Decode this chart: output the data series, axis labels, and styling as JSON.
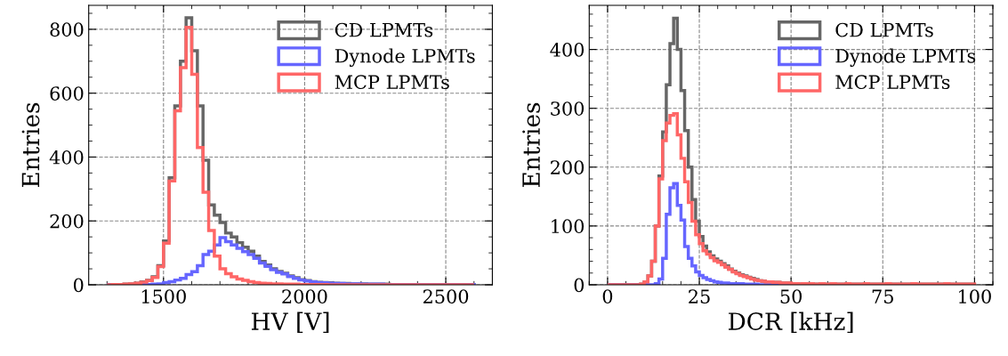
{
  "chart_data": [
    {
      "type": "histogram",
      "xlabel": "HV [V]",
      "ylabel": "Entries",
      "xlim": [
        1235,
        2665
      ],
      "xticks": [
        1500,
        2000,
        2500
      ],
      "ylim": [
        0,
        875
      ],
      "yticks": [
        0,
        200,
        400,
        600,
        800
      ],
      "grid": true,
      "legend": "top right",
      "bins": [
        1300,
        1320,
        1340,
        1360,
        1380,
        1400,
        1420,
        1440,
        1460,
        1480,
        1500,
        1520,
        1540,
        1560,
        1580,
        1600,
        1620,
        1640,
        1660,
        1680,
        1700,
        1720,
        1740,
        1760,
        1780,
        1800,
        1820,
        1840,
        1860,
        1880,
        1900,
        1920,
        1940,
        1960,
        1980,
        2000,
        2020,
        2040,
        2060,
        2080,
        2100,
        2120,
        2140,
        2160,
        2180,
        2200,
        2220,
        2240,
        2260,
        2280,
        2300,
        2320,
        2340,
        2360,
        2380,
        2400,
        2420,
        2440,
        2460,
        2480,
        2500,
        2520,
        2540,
        2560,
        2580,
        2600
      ],
      "series": [
        {
          "name": "CD LPMTs",
          "color": "#666666",
          "values": [
            0,
            1,
            1,
            2,
            3,
            5,
            9,
            14,
            25,
            60,
            137,
            335,
            560,
            700,
            836,
            733,
            560,
            390,
            250,
            218,
            195,
            162,
            150,
            132,
            118,
            105,
            90,
            73,
            62,
            50,
            42,
            36,
            28,
            22,
            16,
            13,
            10,
            8,
            7,
            6,
            5,
            4,
            4,
            3,
            3,
            3,
            2,
            2,
            2,
            2,
            1,
            1,
            1,
            1,
            1,
            1,
            1,
            1,
            1,
            1,
            0,
            1,
            0,
            0,
            1
          ]
        },
        {
          "name": "Dynode LPMTs",
          "color": "#6666ff",
          "values": [
            0,
            0,
            0,
            0,
            0,
            0,
            1,
            1,
            2,
            3,
            7,
            10,
            15,
            20,
            32,
            41,
            60,
            95,
            105,
            125,
            148,
            135,
            125,
            114,
            104,
            95,
            83,
            68,
            58,
            47,
            39,
            34,
            26,
            20,
            15,
            12,
            9,
            7,
            6,
            5,
            4,
            4,
            3,
            3,
            3,
            2,
            2,
            2,
            2,
            1,
            1,
            1,
            1,
            1,
            1,
            1,
            1,
            1,
            1,
            1,
            0,
            1,
            0,
            0,
            1
          ]
        },
        {
          "name": "MCP LPMTs",
          "color": "#ff6666",
          "values": [
            0,
            1,
            1,
            2,
            3,
            5,
            8,
            13,
            23,
            57,
            130,
            325,
            545,
            680,
            806,
            659,
            430,
            290,
            170,
            90,
            50,
            35,
            25,
            18,
            14,
            10,
            7,
            5,
            4,
            3,
            3,
            2,
            2,
            2,
            1,
            1,
            1,
            1,
            1,
            0,
            0,
            0,
            0,
            0,
            0,
            0,
            0,
            0,
            0,
            0,
            0,
            0,
            0,
            0,
            0,
            0,
            0,
            0,
            0,
            0,
            0,
            0,
            0,
            0,
            0
          ]
        }
      ]
    },
    {
      "type": "histogram",
      "xlabel": "DCR [kHz]",
      "ylabel": "Entries",
      "xlim": [
        -5,
        105
      ],
      "xticks": [
        0,
        25,
        50,
        75,
        100
      ],
      "ylim": [
        0,
        475
      ],
      "yticks": [
        0,
        100,
        200,
        300,
        400
      ],
      "grid": true,
      "legend": "top right",
      "bins": [
        0,
        1,
        2,
        3,
        4,
        5,
        6,
        7,
        8,
        9,
        10,
        11,
        12,
        13,
        14,
        15,
        16,
        17,
        18,
        19,
        20,
        21,
        22,
        23,
        24,
        25,
        26,
        27,
        28,
        29,
        30,
        31,
        32,
        33,
        34,
        35,
        36,
        37,
        38,
        39,
        40,
        41,
        42,
        43,
        44,
        45,
        46,
        47,
        48,
        49,
        50,
        51,
        52,
        53,
        54,
        55,
        56,
        57,
        58,
        59,
        60,
        61,
        62,
        63,
        64,
        65,
        66,
        67,
        68,
        69,
        70,
        71,
        72,
        73,
        74,
        75,
        76,
        77,
        78,
        79,
        80,
        81,
        82,
        83,
        84,
        85,
        86,
        87,
        88,
        89,
        90,
        91,
        92,
        93,
        94,
        95,
        96,
        97,
        98,
        99,
        100
      ],
      "series": [
        {
          "name": "CD LPMTs",
          "color": "#666666",
          "values": [
            0,
            0,
            0,
            0,
            0,
            0,
            0,
            0,
            0,
            1,
            5,
            15,
            40,
            100,
            185,
            260,
            340,
            410,
            453,
            400,
            330,
            262,
            200,
            145,
            108,
            82,
            66,
            56,
            49,
            44,
            40,
            36,
            32,
            27,
            23,
            20,
            17,
            15,
            13,
            11,
            9,
            7,
            6,
            5,
            5,
            4,
            4,
            3,
            3,
            3,
            2,
            2,
            1,
            2,
            1,
            2,
            1,
            1,
            2,
            1,
            1,
            2,
            1,
            1,
            1,
            2,
            1,
            1,
            1,
            1,
            2,
            1,
            1,
            1,
            1,
            1,
            2,
            1,
            1,
            1,
            1,
            1,
            1,
            2,
            1,
            1,
            1,
            1,
            1,
            1,
            1,
            1,
            2,
            1,
            1,
            1,
            1,
            1,
            1,
            1
          ]
        },
        {
          "name": "Dynode LPMTs",
          "color": "#6666ff",
          "values": [
            0,
            0,
            0,
            0,
            0,
            0,
            0,
            0,
            0,
            0,
            0,
            0,
            0,
            2,
            10,
            45,
            120,
            165,
            172,
            135,
            110,
            65,
            45,
            32,
            22,
            16,
            12,
            9,
            7,
            5,
            4,
            3,
            3,
            2,
            2,
            2,
            2,
            1,
            1,
            1,
            1,
            0,
            0,
            0,
            0,
            0,
            0,
            0,
            0,
            0,
            0,
            0,
            0,
            0,
            0,
            0,
            0,
            0,
            0,
            0,
            0,
            0,
            0,
            0,
            0,
            0,
            0,
            0,
            0,
            0,
            0,
            0,
            0,
            0,
            0,
            0,
            0,
            0,
            0,
            0,
            0,
            0,
            0,
            0,
            0,
            0,
            0,
            0,
            0,
            0,
            0,
            0,
            0,
            0,
            0,
            0,
            0,
            0,
            0,
            0
          ]
        },
        {
          "name": "MCP LPMTs",
          "color": "#ff6666",
          "values": [
            0,
            0,
            0,
            0,
            0,
            0,
            0,
            0,
            0,
            1,
            5,
            15,
            40,
            100,
            180,
            245,
            275,
            288,
            291,
            255,
            215,
            175,
            140,
            108,
            85,
            70,
            58,
            52,
            46,
            41,
            38,
            34,
            30,
            26,
            22,
            19,
            16,
            14,
            12,
            10,
            8,
            7,
            6,
            5,
            5,
            4,
            4,
            3,
            3,
            3,
            2,
            2,
            1,
            2,
            1,
            2,
            1,
            1,
            2,
            1,
            1,
            2,
            1,
            1,
            1,
            2,
            1,
            1,
            1,
            1,
            2,
            1,
            1,
            1,
            1,
            1,
            2,
            1,
            1,
            1,
            1,
            1,
            1,
            2,
            1,
            1,
            1,
            1,
            1,
            1,
            1,
            1,
            2,
            1,
            1,
            1,
            1,
            1,
            1,
            1
          ]
        }
      ]
    }
  ]
}
